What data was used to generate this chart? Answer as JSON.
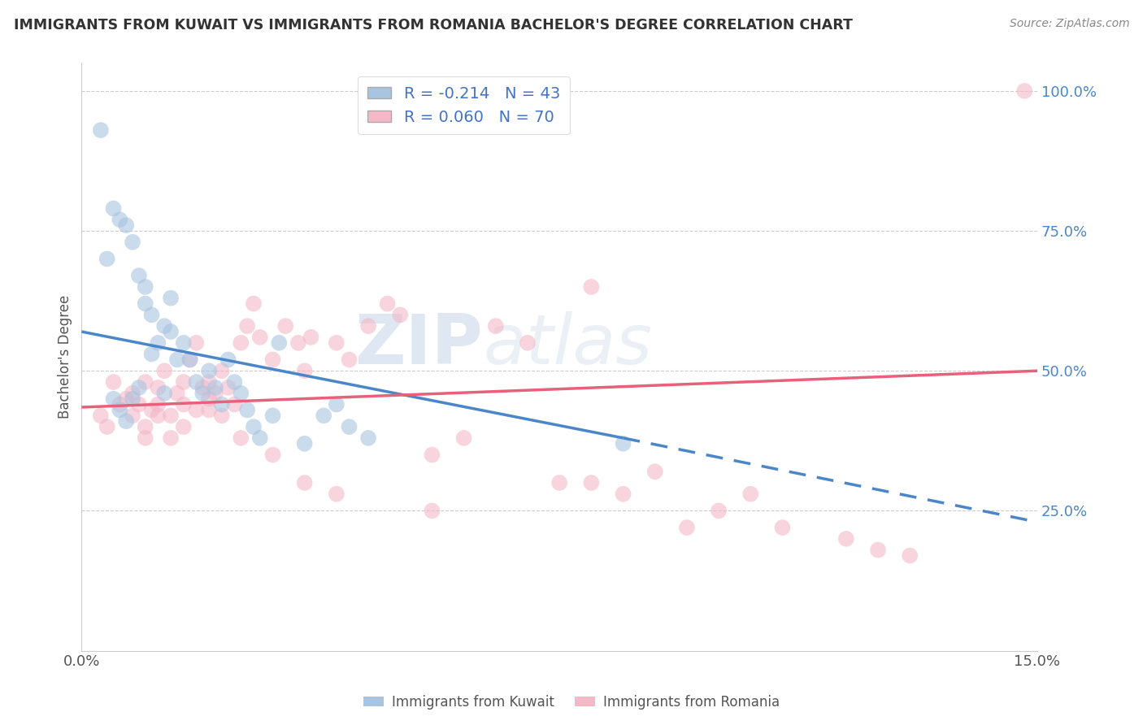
{
  "title": "IMMIGRANTS FROM KUWAIT VS IMMIGRANTS FROM ROMANIA BACHELOR'S DEGREE CORRELATION CHART",
  "source": "Source: ZipAtlas.com",
  "ylabel": "Bachelor's Degree",
  "xlim": [
    0.0,
    15.0
  ],
  "ylim": [
    0.0,
    105.0
  ],
  "y_ticks": [
    25.0,
    50.0,
    75.0,
    100.0
  ],
  "kuwait_color": "#a8c4e0",
  "romania_color": "#f4b8c8",
  "kuwait_line_color": "#4a86c8",
  "romania_line_color": "#e8607a",
  "legend_kuwait_label": "R = -0.214   N = 43",
  "legend_romania_label": "R = 0.060   N = 70",
  "watermark_zip": "ZIP",
  "watermark_atlas": "atlas",
  "kuwait_R": -0.214,
  "kuwait_N": 43,
  "romania_R": 0.06,
  "romania_N": 70,
  "kuwait_line_x0": 0.0,
  "kuwait_line_y0": 57.0,
  "kuwait_line_x1": 8.5,
  "kuwait_line_y1": 38.0,
  "kuwait_dash_x0": 8.5,
  "kuwait_dash_y0": 38.0,
  "kuwait_dash_x1": 15.0,
  "kuwait_dash_y1": 23.0,
  "romania_line_x0": 0.0,
  "romania_line_y0": 43.5,
  "romania_line_x1": 15.0,
  "romania_line_y1": 50.0,
  "kuwait_x": [
    0.3,
    0.4,
    0.5,
    0.6,
    0.7,
    0.8,
    0.9,
    1.0,
    1.0,
    1.1,
    1.2,
    1.3,
    1.4,
    1.4,
    1.5,
    1.6,
    1.7,
    1.8,
    1.9,
    2.0,
    2.1,
    2.2,
    2.3,
    2.4,
    2.5,
    2.6,
    2.7,
    2.8,
    3.0,
    3.1,
    3.5,
    3.8,
    4.0,
    4.2,
    4.5,
    8.5,
    0.5,
    0.6,
    0.7,
    0.8,
    0.9,
    1.1,
    1.3
  ],
  "kuwait_y": [
    93.0,
    70.0,
    79.0,
    77.0,
    76.0,
    73.0,
    67.0,
    62.0,
    65.0,
    60.0,
    55.0,
    58.0,
    63.0,
    57.0,
    52.0,
    55.0,
    52.0,
    48.0,
    46.0,
    50.0,
    47.0,
    44.0,
    52.0,
    48.0,
    46.0,
    43.0,
    40.0,
    38.0,
    42.0,
    55.0,
    37.0,
    42.0,
    44.0,
    40.0,
    38.0,
    37.0,
    45.0,
    43.0,
    41.0,
    45.0,
    47.0,
    53.0,
    46.0
  ],
  "romania_x": [
    0.3,
    0.4,
    0.5,
    0.6,
    0.7,
    0.8,
    0.8,
    0.9,
    1.0,
    1.0,
    1.1,
    1.2,
    1.2,
    1.3,
    1.4,
    1.5,
    1.6,
    1.6,
    1.7,
    1.8,
    1.9,
    2.0,
    2.0,
    2.1,
    2.2,
    2.3,
    2.4,
    2.5,
    2.6,
    2.7,
    2.8,
    3.0,
    3.2,
    3.4,
    3.5,
    3.6,
    4.0,
    4.2,
    4.5,
    4.8,
    5.0,
    5.5,
    6.0,
    6.5,
    7.0,
    7.5,
    8.0,
    8.5,
    9.0,
    9.5,
    10.0,
    10.5,
    11.0,
    12.0,
    12.5,
    13.0,
    1.0,
    1.2,
    1.4,
    1.6,
    1.8,
    2.0,
    2.2,
    2.5,
    3.0,
    3.5,
    4.0,
    5.5,
    8.0,
    14.8
  ],
  "romania_y": [
    42.0,
    40.0,
    48.0,
    44.0,
    45.0,
    42.0,
    46.0,
    44.0,
    48.0,
    38.0,
    43.0,
    47.0,
    44.0,
    50.0,
    42.0,
    46.0,
    48.0,
    44.0,
    52.0,
    55.0,
    47.0,
    48.0,
    43.0,
    46.0,
    50.0,
    47.0,
    44.0,
    55.0,
    58.0,
    62.0,
    56.0,
    52.0,
    58.0,
    55.0,
    50.0,
    56.0,
    55.0,
    52.0,
    58.0,
    62.0,
    60.0,
    35.0,
    38.0,
    58.0,
    55.0,
    30.0,
    30.0,
    28.0,
    32.0,
    22.0,
    25.0,
    28.0,
    22.0,
    20.0,
    18.0,
    17.0,
    40.0,
    42.0,
    38.0,
    40.0,
    43.0,
    45.0,
    42.0,
    38.0,
    35.0,
    30.0,
    28.0,
    25.0,
    65.0,
    100.0
  ]
}
